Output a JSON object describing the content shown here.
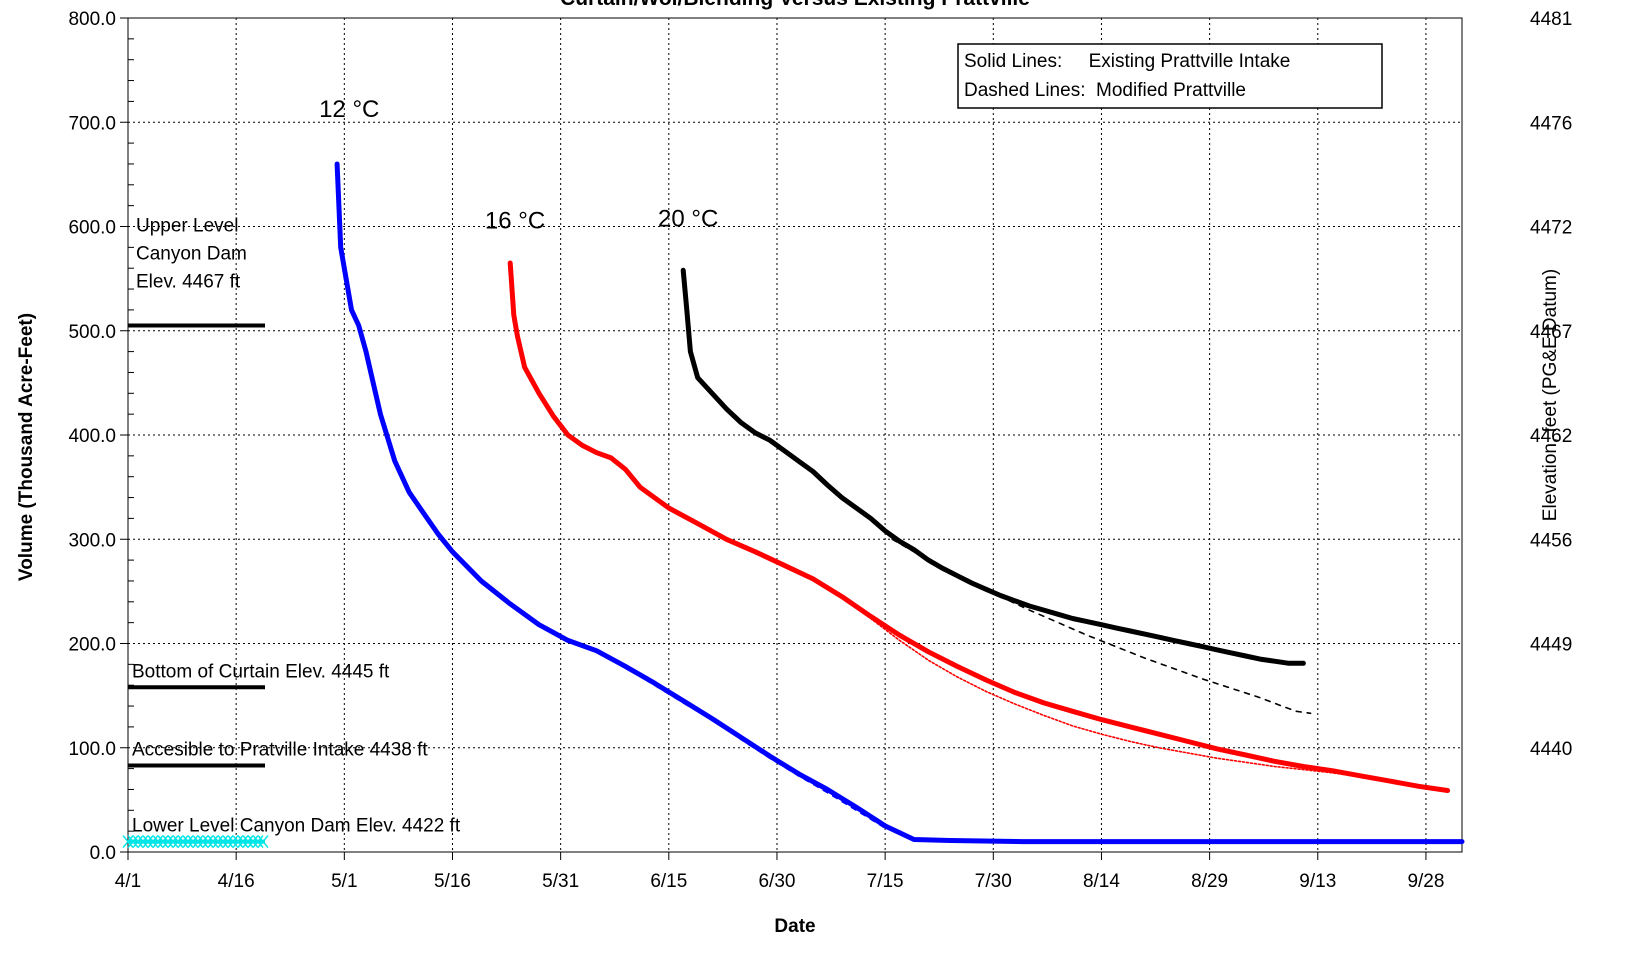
{
  "chart_data": {
    "type": "line",
    "title": "Curtain/Wol/Blending Versus Existing Prattville",
    "xlabel": "Date",
    "ylabel": "Volume (Thousand Acre-Feet)",
    "y2label": "Elevation, feet (PG&E Datum)",
    "x_unit": "day of year (1 = 4/1)",
    "x_ticks": [
      {
        "label": "4/1",
        "value": 1
      },
      {
        "label": "4/16",
        "value": 16
      },
      {
        "label": "5/1",
        "value": 31
      },
      {
        "label": "5/16",
        "value": 46
      },
      {
        "label": "5/31",
        "value": 61
      },
      {
        "label": "6/15",
        "value": 76
      },
      {
        "label": "6/30",
        "value": 91
      },
      {
        "label": "7/15",
        "value": 106
      },
      {
        "label": "7/30",
        "value": 121
      },
      {
        "label": "8/14",
        "value": 136
      },
      {
        "label": "8/29",
        "value": 151
      },
      {
        "label": "9/13",
        "value": 166
      },
      {
        "label": "9/28",
        "value": 181
      }
    ],
    "xlim": [
      1,
      186
    ],
    "ylim": [
      0,
      800
    ],
    "y_ticks": [
      "0.0",
      "100.0",
      "200.0",
      "300.0",
      "400.0",
      "500.0",
      "600.0",
      "700.0",
      "800.0"
    ],
    "y2_ticks": [
      {
        "label": "4481",
        "volume": 800
      },
      {
        "label": "4476",
        "volume": 700
      },
      {
        "label": "4472",
        "volume": 600
      },
      {
        "label": "4467",
        "volume": 500
      },
      {
        "label": "4462",
        "volume": 400
      },
      {
        "label": "4456",
        "volume": 300
      },
      {
        "label": "4449",
        "volume": 200
      },
      {
        "label": "4440",
        "volume": 100
      }
    ],
    "grid": true,
    "legend_text": [
      "Solid Lines:     Existing Prattville Intake",
      "Dashed Lines:  Modified Prattville"
    ],
    "legend_position": "top-right",
    "series": [
      {
        "name": "12 °C",
        "style": "solid",
        "color": "#0000ff",
        "points": [
          [
            30,
            660
          ],
          [
            30.5,
            580
          ],
          [
            31,
            560
          ],
          [
            32,
            520
          ],
          [
            33,
            505
          ],
          [
            34,
            480
          ],
          [
            35,
            450
          ],
          [
            36,
            420
          ],
          [
            38,
            375
          ],
          [
            40,
            345
          ],
          [
            42,
            325
          ],
          [
            44,
            305
          ],
          [
            46,
            288
          ],
          [
            50,
            260
          ],
          [
            54,
            238
          ],
          [
            58,
            218
          ],
          [
            62,
            203
          ],
          [
            66,
            193
          ],
          [
            70,
            178
          ],
          [
            74,
            162
          ],
          [
            78,
            145
          ],
          [
            82,
            128
          ],
          [
            86,
            110
          ],
          [
            90,
            92
          ],
          [
            94,
            75
          ],
          [
            98,
            60
          ],
          [
            102,
            43
          ],
          [
            106,
            25
          ],
          [
            110,
            12
          ],
          [
            115,
            11
          ],
          [
            125,
            10
          ],
          [
            140,
            10
          ],
          [
            160,
            10
          ],
          [
            186,
            10
          ]
        ]
      },
      {
        "name": "12 °C",
        "style": "dashed",
        "color": "#0000ff",
        "points": [
          [
            62,
            203
          ],
          [
            66,
            194
          ],
          [
            70,
            177
          ],
          [
            74,
            160
          ],
          [
            78,
            143
          ],
          [
            82,
            127
          ],
          [
            86,
            108
          ],
          [
            90,
            90
          ],
          [
            94,
            73
          ],
          [
            98,
            57
          ],
          [
            102,
            40
          ],
          [
            106,
            23
          ],
          [
            108,
            18
          ]
        ]
      },
      {
        "name": "16 °C",
        "style": "solid",
        "color": "#ff0000",
        "points": [
          [
            54,
            565
          ],
          [
            54.5,
            515
          ],
          [
            55,
            495
          ],
          [
            56,
            465
          ],
          [
            58,
            440
          ],
          [
            60,
            418
          ],
          [
            62,
            400
          ],
          [
            64,
            390
          ],
          [
            66,
            383
          ],
          [
            68,
            378
          ],
          [
            70,
            367
          ],
          [
            72,
            350
          ],
          [
            76,
            330
          ],
          [
            80,
            315
          ],
          [
            84,
            300
          ],
          [
            88,
            288
          ],
          [
            92,
            275
          ],
          [
            96,
            262
          ],
          [
            100,
            245
          ],
          [
            104,
            226
          ],
          [
            108,
            208
          ],
          [
            112,
            192
          ],
          [
            116,
            178
          ],
          [
            120,
            165
          ],
          [
            124,
            153
          ],
          [
            128,
            143
          ],
          [
            132,
            135
          ],
          [
            136,
            127
          ],
          [
            140,
            120
          ],
          [
            144,
            113
          ],
          [
            148,
            106
          ],
          [
            152,
            99
          ],
          [
            156,
            93
          ],
          [
            160,
            87
          ],
          [
            164,
            82
          ],
          [
            168,
            78
          ],
          [
            172,
            73
          ],
          [
            176,
            68
          ],
          [
            180,
            63
          ],
          [
            184,
            59
          ]
        ]
      },
      {
        "name": "16 °C",
        "style": "dashed",
        "color": "#ff0000",
        "points": [
          [
            100,
            245
          ],
          [
            104,
            224
          ],
          [
            108,
            203
          ],
          [
            112,
            184
          ],
          [
            116,
            168
          ],
          [
            120,
            154
          ],
          [
            124,
            142
          ],
          [
            128,
            131
          ],
          [
            132,
            121
          ],
          [
            136,
            113
          ],
          [
            140,
            106
          ],
          [
            144,
            100
          ],
          [
            148,
            95
          ],
          [
            152,
            90
          ],
          [
            156,
            86
          ],
          [
            160,
            82
          ],
          [
            164,
            79
          ],
          [
            168,
            76
          ],
          [
            172,
            72
          ],
          [
            176,
            68
          ],
          [
            180,
            63
          ],
          [
            184,
            59
          ]
        ]
      },
      {
        "name": "20 °C",
        "style": "solid",
        "color": "#000000",
        "points": [
          [
            78,
            558
          ],
          [
            78.5,
            520
          ],
          [
            79,
            480
          ],
          [
            80,
            455
          ],
          [
            82,
            440
          ],
          [
            84,
            425
          ],
          [
            86,
            412
          ],
          [
            88,
            402
          ],
          [
            90,
            395
          ],
          [
            92,
            385
          ],
          [
            94,
            375
          ],
          [
            96,
            365
          ],
          [
            98,
            352
          ],
          [
            100,
            340
          ],
          [
            102,
            330
          ],
          [
            104,
            320
          ],
          [
            106,
            308
          ],
          [
            108,
            298
          ],
          [
            110,
            290
          ],
          [
            112,
            280
          ],
          [
            114,
            272
          ],
          [
            116,
            265
          ],
          [
            118,
            258
          ],
          [
            120,
            252
          ],
          [
            122,
            246
          ],
          [
            124,
            241
          ],
          [
            126,
            236
          ],
          [
            128,
            232
          ],
          [
            130,
            228
          ],
          [
            132,
            224
          ],
          [
            134,
            221
          ],
          [
            136,
            218
          ],
          [
            138,
            215
          ],
          [
            140,
            212
          ],
          [
            142,
            209
          ],
          [
            144,
            206
          ],
          [
            146,
            203
          ],
          [
            148,
            200
          ],
          [
            150,
            197
          ],
          [
            152,
            194
          ],
          [
            154,
            191
          ],
          [
            156,
            188
          ],
          [
            158,
            185
          ],
          [
            160,
            183
          ],
          [
            162,
            181
          ],
          [
            164,
            181
          ]
        ]
      },
      {
        "name": "20 °C",
        "style": "dashed",
        "color": "#000000",
        "points": [
          [
            107,
            300
          ],
          [
            110,
            288
          ],
          [
            114,
            272
          ],
          [
            118,
            258
          ],
          [
            122,
            245
          ],
          [
            126,
            232
          ],
          [
            130,
            220
          ],
          [
            134,
            208
          ],
          [
            138,
            197
          ],
          [
            142,
            186
          ],
          [
            146,
            176
          ],
          [
            150,
            166
          ],
          [
            154,
            157
          ],
          [
            158,
            148
          ],
          [
            161,
            140
          ],
          [
            163,
            135
          ],
          [
            165,
            133
          ]
        ]
      }
    ],
    "reference_lines": [
      {
        "label": "Upper Level\nCanyon Dam\nElev. 4467 ft",
        "y": 505,
        "x_start": 1,
        "x_end": 20
      },
      {
        "label": "Bottom of Curtain Elev. 4445 ft",
        "y": 158,
        "x_start": 1,
        "x_end": 20
      },
      {
        "label": "Accesible to  Pratville Intake 4438 ft",
        "y": 83,
        "x_start": 1,
        "x_end": 20
      },
      {
        "label": "Lower Level Canyon Dam Elev. 4422 ft",
        "y": 10,
        "x_start": 1,
        "x_end": 20,
        "color": "#00e5e5",
        "marker": "x"
      }
    ],
    "series_labels": [
      {
        "text": "12 °C",
        "x": 27.5,
        "y": 705
      },
      {
        "text": "16 °C",
        "x": 50.5,
        "y": 598
      },
      {
        "text": "20 °C",
        "x": 74.5,
        "y": 600
      }
    ]
  }
}
